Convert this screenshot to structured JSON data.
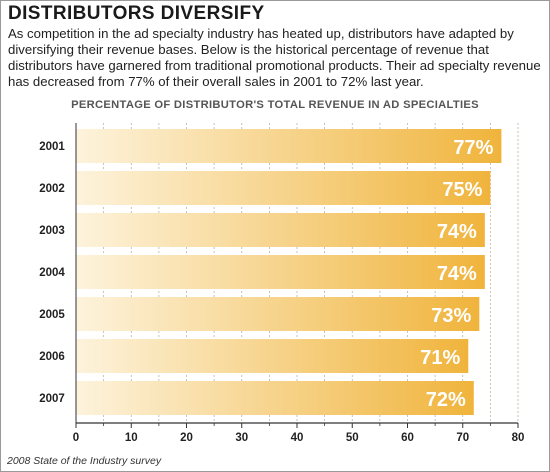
{
  "header": {
    "title": "DISTRIBUTORS DIVERSIFY",
    "intro": "As competition in the ad specialty industry has heated up, distributors have adapted by diversifying their revenue bases. Below is the historical percentage of revenue that distributors have garnered from traditional promotional products. Their ad specialty revenue has decreased from 77% of their overall sales in 2001 to 72% last year."
  },
  "source": "2008 State of the Industry survey",
  "colors": {
    "bar_start": "#fdf3dc",
    "bar_end": "#f0b43c",
    "grid": "#bdb29c",
    "axis": "#333333",
    "value_label": "#ffffff"
  },
  "chart_data": {
    "type": "bar",
    "orientation": "horizontal",
    "title": "PERCENTAGE OF DISTRIBUTOR'S TOTAL REVENUE IN AD SPECIALTIES",
    "categories": [
      "2001",
      "2002",
      "2003",
      "2004",
      "2005",
      "2006",
      "2007"
    ],
    "values": [
      77,
      75,
      74,
      74,
      73,
      71,
      72
    ],
    "value_labels": [
      "77%",
      "75%",
      "74%",
      "74%",
      "73%",
      "71%",
      "72%"
    ],
    "xlim": [
      0,
      80
    ],
    "xticks": [
      0,
      10,
      20,
      30,
      40,
      50,
      60,
      70,
      80
    ],
    "xtick_labels": [
      "0",
      "10",
      "20",
      "30",
      "40",
      "50",
      "60",
      "70",
      "80"
    ],
    "grid_minor_ticks": [
      5,
      15,
      25,
      35,
      45,
      55,
      65,
      75
    ],
    "grid": true,
    "grid_style": "dashed vertical"
  }
}
